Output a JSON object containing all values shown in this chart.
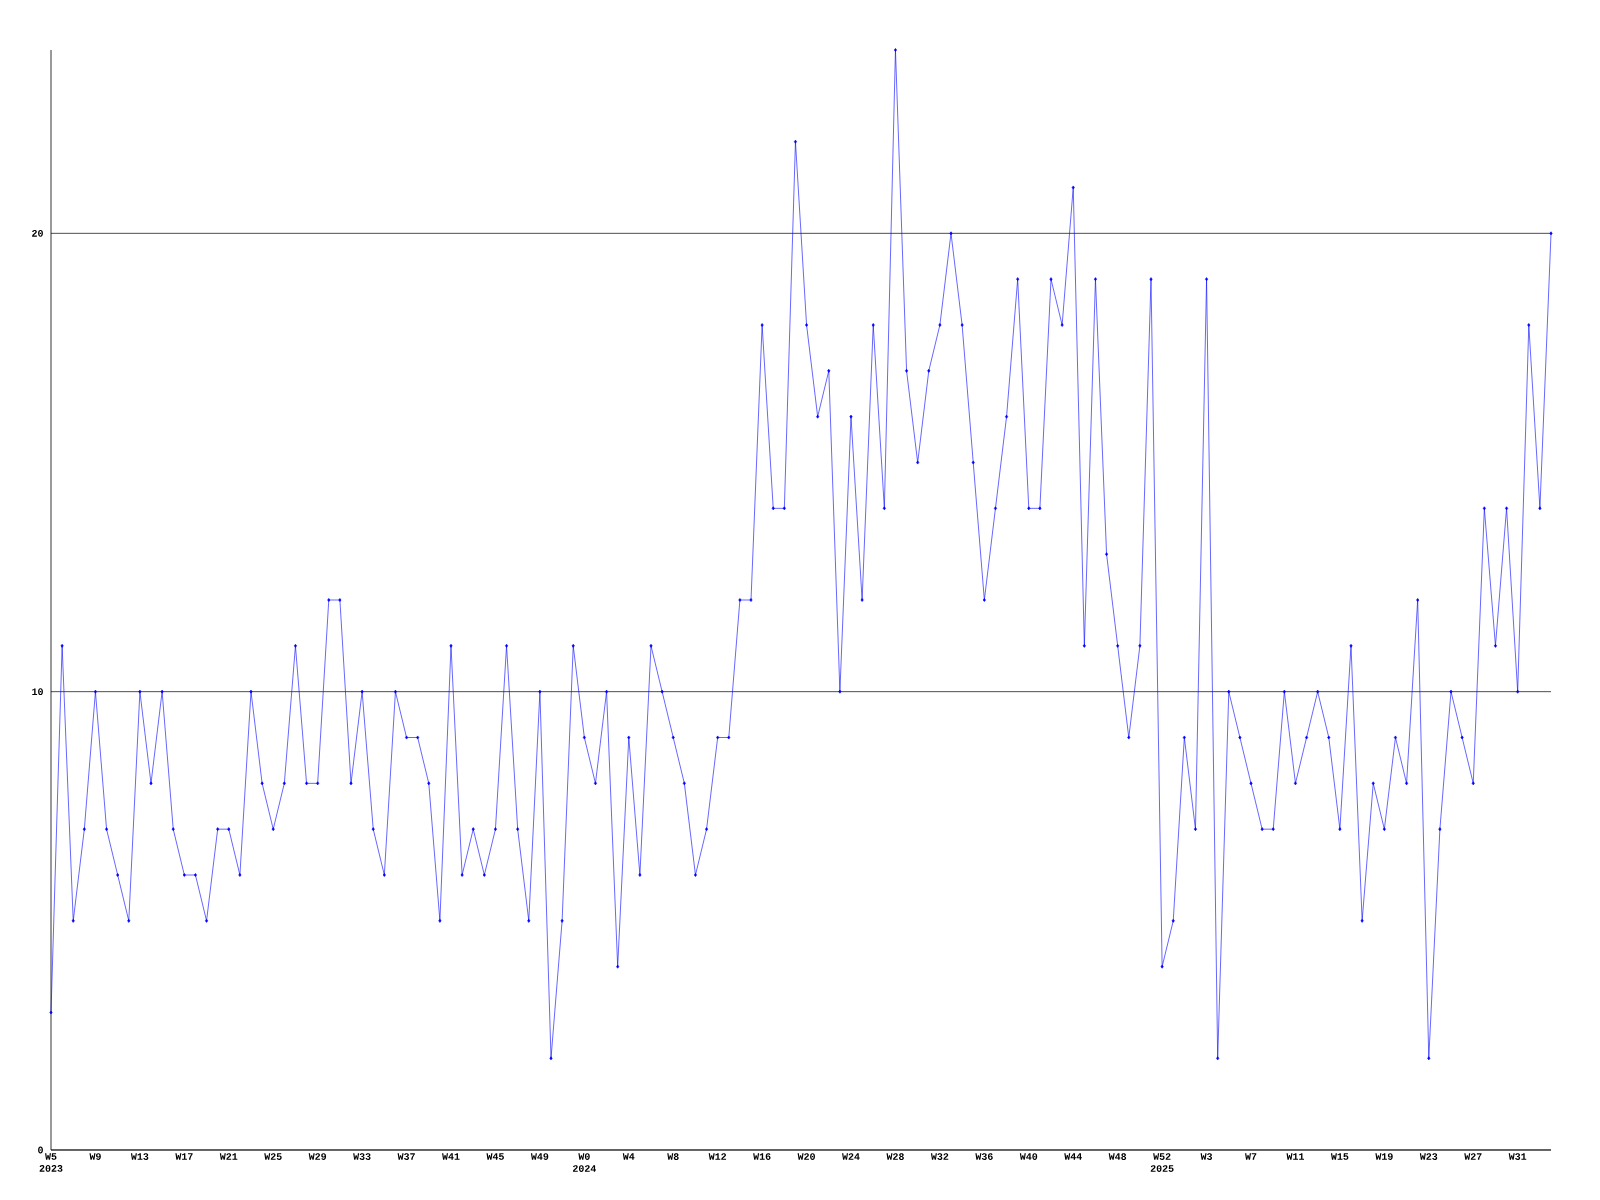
{
  "chart_data": {
    "type": "line",
    "categories": [
      "W5 2023",
      null,
      null,
      null,
      "W9",
      null,
      null,
      null,
      "W13",
      null,
      null,
      null,
      "W17",
      null,
      null,
      null,
      "W21",
      null,
      null,
      null,
      "W25",
      null,
      null,
      null,
      "W29",
      null,
      null,
      null,
      "W33",
      null,
      null,
      null,
      "W37",
      null,
      null,
      null,
      "W41",
      null,
      null,
      null,
      "W45",
      null,
      null,
      null,
      "W49",
      null,
      null,
      null,
      "W0 2024",
      null,
      null,
      null,
      "W4",
      null,
      null,
      null,
      "W8",
      null,
      null,
      null,
      "W12",
      null,
      null,
      null,
      "W16",
      null,
      null,
      null,
      "W20",
      null,
      null,
      null,
      "W24",
      null,
      null,
      null,
      "W28",
      null,
      null,
      null,
      "W32",
      null,
      null,
      null,
      "W36",
      null,
      null,
      null,
      "W40",
      null,
      null,
      null,
      "W44",
      null,
      null,
      null,
      "W48",
      null,
      null,
      null,
      "W52 2025",
      null,
      null,
      null,
      "W3",
      null,
      null,
      null,
      "W7",
      null,
      null,
      null,
      "W11",
      null,
      null,
      null,
      "W15",
      null,
      null,
      null,
      "W19",
      null,
      null,
      null,
      "W23",
      null,
      null,
      null,
      "W27",
      null,
      null,
      null,
      "W31",
      null,
      null,
      null
    ],
    "values": [
      3,
      11,
      5,
      7,
      10,
      7,
      6,
      5,
      10,
      8,
      10,
      7,
      6,
      6,
      5,
      7,
      7,
      6,
      10,
      8,
      7,
      8,
      11,
      8,
      8,
      12,
      12,
      8,
      10,
      7,
      6,
      10,
      9,
      9,
      8,
      5,
      11,
      6,
      7,
      6,
      7,
      11,
      7,
      5,
      10,
      2,
      5,
      11,
      9,
      8,
      10,
      4,
      9,
      6,
      11,
      10,
      9,
      8,
      6,
      7,
      9,
      9,
      12,
      12,
      18,
      14,
      14,
      22,
      18,
      16,
      17,
      10,
      16,
      12,
      18,
      14,
      24,
      17,
      15,
      17,
      18,
      20,
      18,
      15,
      12,
      14,
      16,
      19,
      14,
      14,
      19,
      18,
      21,
      11,
      19,
      13,
      11,
      9,
      11,
      19,
      4,
      5,
      9,
      7,
      19,
      2,
      10,
      9,
      8,
      7,
      7,
      10,
      8,
      9,
      10,
      9,
      7,
      11,
      5,
      8,
      7,
      9,
      8,
      12,
      2,
      7,
      10,
      9,
      8,
      14,
      11,
      14,
      10,
      18,
      14,
      20
    ],
    "color": "#0000ff",
    "ylim": [
      0,
      24
    ],
    "yticks": [
      0,
      10,
      20
    ],
    "grid": "y",
    "marker": "diamond"
  }
}
